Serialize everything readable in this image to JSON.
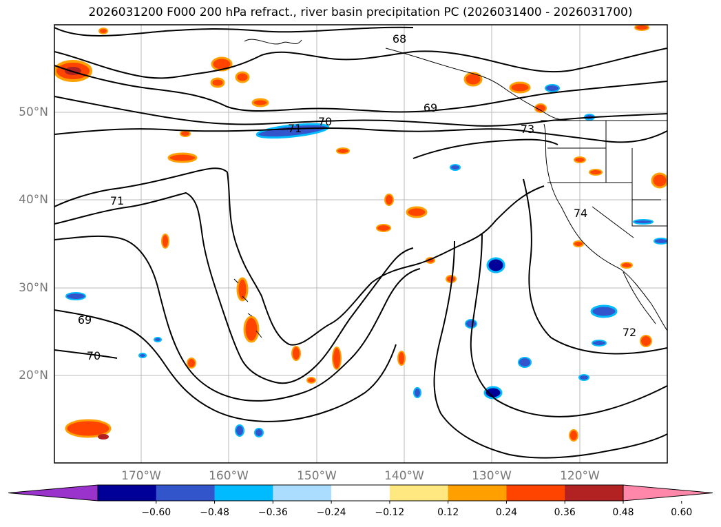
{
  "title": "2026031200 F000 200 hPa refract., river basin precipitation PC (2026031400 - 2026031700)",
  "lat_labels": [
    "50°N",
    "40°N",
    "30°N",
    "20°N"
  ],
  "lon_labels": [
    "170°W",
    "160°W",
    "150°W",
    "140°W",
    "130°W",
    "120°W"
  ],
  "contour_labels": [
    "68",
    "69",
    "70",
    "71",
    "72",
    "73",
    "74"
  ],
  "colorbar": {
    "ticks": [
      "−0.60",
      "−0.48",
      "−0.36",
      "−0.24",
      "−0.12",
      "0.12",
      "0.24",
      "0.36",
      "0.48",
      "0.60"
    ],
    "colors": [
      "#9933cc",
      "#000099",
      "#3355cc",
      "#00bbff",
      "#aaddff",
      "#ffffff",
      "#ffe880",
      "#ffa000",
      "#ff4400",
      "#b22222",
      "#ff88aa"
    ]
  }
}
